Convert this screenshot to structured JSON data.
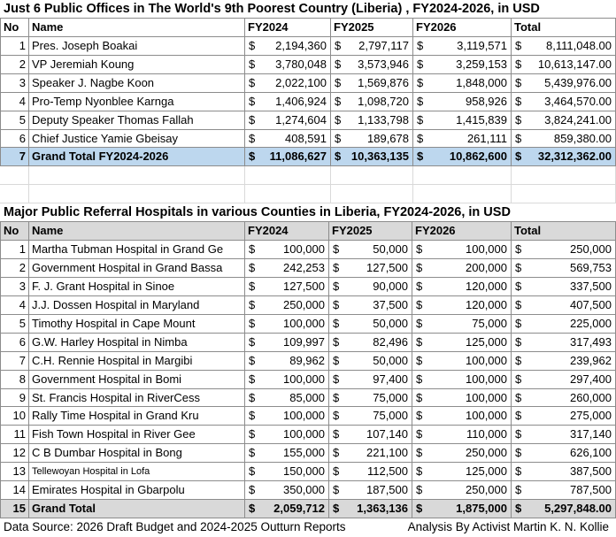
{
  "currency": "$",
  "table1": {
    "title": "Just 6 Public Offices in The World's 9th Poorest Country (Liberia) , FY2024-2026, in USD",
    "headers": [
      "No",
      "Name",
      "FY2024",
      "FY2025",
      "FY2026",
      "Total"
    ],
    "rows": [
      [
        1,
        "Pres. Joseph Boakai",
        "2,194,360",
        "2,797,117",
        "3,119,571",
        "8,111,048.00"
      ],
      [
        2,
        "VP Jeremiah Koung",
        "3,780,048",
        "3,573,946",
        "3,259,153",
        "10,613,147.00"
      ],
      [
        3,
        "Speaker J. Nagbe Koon",
        "2,022,100",
        "1,569,876",
        "1,848,000",
        "5,439,976.00"
      ],
      [
        4,
        "Pro-Temp Nyonblee Karnga",
        "1,406,924",
        "1,098,720",
        "958,926",
        "3,464,570.00"
      ],
      [
        5,
        "Deputy Speaker Thomas Fallah",
        "1,274,604",
        "1,133,798",
        "1,415,839",
        "3,824,241.00"
      ],
      [
        6,
        "Chief Justice Yamie  Gbeisay",
        "408,591",
        "189,678",
        "261,111",
        "859,380.00"
      ]
    ],
    "total": [
      7,
      "Grand Total FY2024-2026",
      "11,086,627",
      "10,363,135",
      "10,862,600",
      "32,312,362.00"
    ]
  },
  "table2": {
    "title": "Major Public Referral Hospitals in various Counties in Liberia, FY2024-2026, in USD",
    "headers": [
      "No",
      "Name",
      "FY2024",
      "FY2025",
      "FY2026",
      "Total"
    ],
    "rows": [
      [
        1,
        "Martha Tubman Hospital in Grand Ge",
        "100,000",
        "50,000",
        "100,000",
        "250,000"
      ],
      [
        2,
        "Government Hospital in Grand Bassa",
        "242,253",
        "127,500",
        "200,000",
        "569,753"
      ],
      [
        3,
        "F. J. Grant Hospital in Sinoe",
        "127,500",
        "90,000",
        "120,000",
        "337,500"
      ],
      [
        4,
        "J.J. Dossen Hospital in Maryland",
        "250,000",
        "37,500",
        "120,000",
        "407,500"
      ],
      [
        5,
        "Timothy Hospital in Cape Mount",
        "100,000",
        "50,000",
        "75,000",
        "225,000"
      ],
      [
        6,
        "G.W. Harley Hospital in Nimba",
        "109,997",
        "82,496",
        "125,000",
        "317,493"
      ],
      [
        7,
        "C.H. Rennie Hospital in Margibi",
        "89,962",
        "50,000",
        "100,000",
        "239,962"
      ],
      [
        8,
        "Government Hospital in Bomi",
        "100,000",
        "97,400",
        "100,000",
        "297,400"
      ],
      [
        9,
        "St. Francis Hospital in RiverCess",
        "85,000",
        "75,000",
        "100,000",
        "260,000"
      ],
      [
        10,
        "Rally Time Hospital in Grand Kru",
        "100,000",
        "75,000",
        "100,000",
        "275,000"
      ],
      [
        11,
        "Fish Town Hospital in River Gee",
        "100,000",
        "107,140",
        "110,000",
        "317,140"
      ],
      [
        12,
        "C B Dumbar Hospital in Bong",
        "155,000",
        "221,100",
        "250,000",
        "626,100"
      ],
      [
        13,
        "Tellewoyan Hospital in Lofa",
        "150,000",
        "112,500",
        "125,000",
        "387,500"
      ],
      [
        14,
        "Emirates Hospital in Gbarpolu",
        "350,000",
        "187,500",
        "250,000",
        "787,500"
      ]
    ],
    "total": [
      15,
      "Grand Total",
      "2,059,712",
      "1,363,136",
      "1,875,000",
      "5,297,848.00"
    ]
  },
  "footer": {
    "source": "Data Source: 2026 Draft Budget and 2024-2025 Outturn Reports",
    "analysis": "Analysis By Activist Martin K. N. Kollie"
  }
}
